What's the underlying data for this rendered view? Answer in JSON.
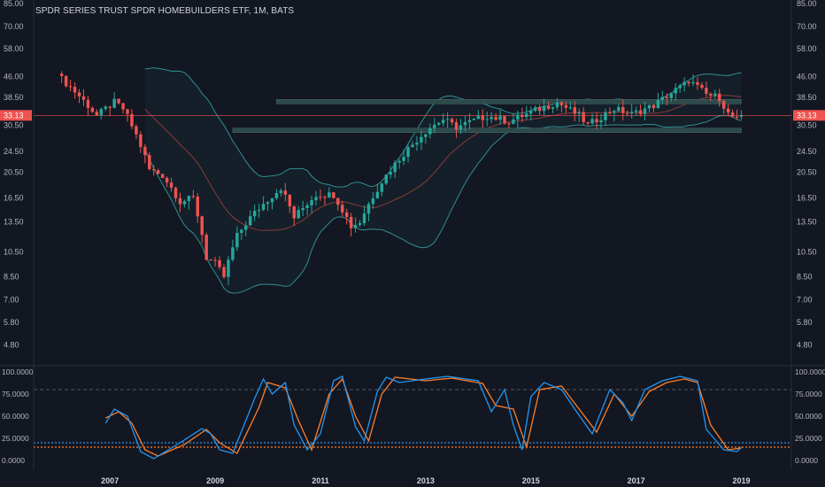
{
  "header": {
    "title": "SPDR SERIES TRUST SPDR HOMEBUILDERS ETF, 1M, BATS"
  },
  "colors": {
    "background": "#131722",
    "up": "#26a69a",
    "down": "#ef5350",
    "text": "#b2b5be",
    "bollinger": "#2f8f8f",
    "basis": "#8b3a3a",
    "zone": "#2d4a4a",
    "k_line": "#2196f3",
    "d_line": "#ff7f27",
    "price_line": "#ef5350"
  },
  "chart_data": [
    {
      "type": "candlestick",
      "title": "SPDR SERIES TRUST SPDR HOMEBUILDERS ETF, 1M, BATS",
      "scale": "log",
      "y_ticks": [
        "85.00",
        "70.00",
        "58.00",
        "46.00",
        "38.50",
        "30.50",
        "24.50",
        "20.50",
        "16.50",
        "13.50",
        "10.50",
        "8.50",
        "7.00",
        "5.80",
        "4.80"
      ],
      "x_ticks": [
        "2007",
        "2009",
        "2011",
        "2013",
        "2015",
        "2017",
        "2019"
      ],
      "ylim": [
        4.3,
        85
      ],
      "last_price": "33.13",
      "series": [
        {
          "name": "Price",
          "anchors": [
            [
              "2006-02",
              45.0
            ],
            [
              "2006-06",
              39.0
            ],
            [
              "2006-10",
              33.0
            ],
            [
              "2007-02",
              37.0
            ],
            [
              "2007-04",
              35.0
            ],
            [
              "2007-07",
              28.0
            ],
            [
              "2007-10",
              21.0
            ],
            [
              "2008-01",
              20.0
            ],
            [
              "2008-05",
              16.0
            ],
            [
              "2008-08",
              16.5
            ],
            [
              "2008-11",
              10.0
            ],
            [
              "2009-01",
              9.5
            ],
            [
              "2009-03",
              8.5
            ],
            [
              "2009-06",
              12.0
            ],
            [
              "2009-09",
              14.0
            ],
            [
              "2010-04",
              18.0
            ],
            [
              "2010-07",
              14.0
            ],
            [
              "2010-12",
              17.0
            ],
            [
              "2011-04",
              17.0
            ],
            [
              "2011-08",
              13.0
            ],
            [
              "2011-10",
              13.5
            ],
            [
              "2012-03",
              19.0
            ],
            [
              "2012-08",
              24.0
            ],
            [
              "2013-02",
              30.0
            ],
            [
              "2013-05",
              32.0
            ],
            [
              "2013-08",
              30.0
            ],
            [
              "2014-03",
              33.0
            ],
            [
              "2014-08",
              31.5
            ],
            [
              "2015-03",
              35.0
            ],
            [
              "2015-07",
              37.0
            ],
            [
              "2015-12",
              33.0
            ],
            [
              "2016-02",
              30.5
            ],
            [
              "2016-08",
              35.0
            ],
            [
              "2016-12",
              33.5
            ],
            [
              "2017-05",
              36.0
            ],
            [
              "2017-12",
              43.0
            ],
            [
              "2018-01",
              44.5
            ],
            [
              "2018-05",
              39.5
            ],
            [
              "2018-08",
              38.5
            ],
            [
              "2018-10",
              33.5
            ],
            [
              "2018-12",
              32.0
            ],
            [
              "2019-01",
              33.13
            ]
          ]
        }
      ],
      "indicators": [
        "Bollinger Bands (upper, basis, lower)"
      ],
      "zones": [
        {
          "from": "2010-03",
          "to": "2019-01",
          "price": 37.2
        },
        {
          "from": "2009-05",
          "to": "2019-01",
          "price": 29.2
        }
      ]
    },
    {
      "type": "line",
      "title": "Stochastic",
      "y_ticks": [
        "100.0000",
        "75.0000",
        "50.0000",
        "25.0000",
        "0.0000"
      ],
      "ylim": [
        0,
        100
      ],
      "levels": [
        80,
        20,
        15
      ],
      "series": [
        {
          "name": "%K",
          "anchors": [
            [
              "2006-12",
              42
            ],
            [
              "2007-02",
              58
            ],
            [
              "2007-05",
              50
            ],
            [
              "2007-08",
              10
            ],
            [
              "2007-11",
              2
            ],
            [
              "2008-05",
              20
            ],
            [
              "2008-10",
              36
            ],
            [
              "2008-12",
              30
            ],
            [
              "2009-02",
              12
            ],
            [
              "2009-05",
              8
            ],
            [
              "2009-10",
              70
            ],
            [
              "2009-12",
              92
            ],
            [
              "2010-02",
              75
            ],
            [
              "2010-05",
              88
            ],
            [
              "2010-07",
              40
            ],
            [
              "2010-10",
              12
            ],
            [
              "2011-01",
              30
            ],
            [
              "2011-04",
              90
            ],
            [
              "2011-06",
              95
            ],
            [
              "2011-09",
              38
            ],
            [
              "2011-11",
              22
            ],
            [
              "2012-02",
              78
            ],
            [
              "2012-04",
              94
            ],
            [
              "2012-07",
              88
            ],
            [
              "2013-01",
              92
            ],
            [
              "2013-06",
              95
            ],
            [
              "2014-01",
              90
            ],
            [
              "2014-04",
              55
            ],
            [
              "2014-07",
              80
            ],
            [
              "2014-09",
              40
            ],
            [
              "2014-11",
              12
            ],
            [
              "2015-01",
              72
            ],
            [
              "2015-04",
              88
            ],
            [
              "2015-08",
              80
            ],
            [
              "2015-11",
              58
            ],
            [
              "2016-03",
              30
            ],
            [
              "2016-07",
              80
            ],
            [
              "2016-10",
              65
            ],
            [
              "2016-12",
              45
            ],
            [
              "2017-03",
              80
            ],
            [
              "2017-07",
              90
            ],
            [
              "2017-11",
              95
            ],
            [
              "2018-03",
              90
            ],
            [
              "2018-05",
              35
            ],
            [
              "2018-09",
              12
            ],
            [
              "2018-12",
              10
            ],
            [
              "2019-01",
              15
            ]
          ]
        },
        {
          "name": "%D",
          "anchors": [
            [
              "2006-12",
              48
            ],
            [
              "2007-03",
              55
            ],
            [
              "2007-06",
              42
            ],
            [
              "2007-09",
              12
            ],
            [
              "2007-12",
              5
            ],
            [
              "2008-06",
              18
            ],
            [
              "2008-11",
              35
            ],
            [
              "2009-02",
              20
            ],
            [
              "2009-06",
              8
            ],
            [
              "2009-11",
              60
            ],
            [
              "2010-01",
              88
            ],
            [
              "2010-05",
              82
            ],
            [
              "2010-08",
              45
            ],
            [
              "2010-11",
              12
            ],
            [
              "2011-03",
              75
            ],
            [
              "2011-06",
              92
            ],
            [
              "2011-09",
              50
            ],
            [
              "2011-12",
              22
            ],
            [
              "2012-03",
              75
            ],
            [
              "2012-06",
              94
            ],
            [
              "2013-01",
              90
            ],
            [
              "2013-07",
              93
            ],
            [
              "2014-02",
              87
            ],
            [
              "2014-05",
              62
            ],
            [
              "2014-09",
              58
            ],
            [
              "2014-12",
              15
            ],
            [
              "2015-03",
              80
            ],
            [
              "2015-08",
              84
            ],
            [
              "2015-12",
              58
            ],
            [
              "2016-04",
              32
            ],
            [
              "2016-08",
              75
            ],
            [
              "2016-12",
              50
            ],
            [
              "2017-04",
              78
            ],
            [
              "2017-08",
              88
            ],
            [
              "2017-12",
              92
            ],
            [
              "2018-03",
              88
            ],
            [
              "2018-06",
              40
            ],
            [
              "2018-10",
              12
            ],
            [
              "2019-01",
              14
            ]
          ]
        }
      ]
    }
  ]
}
